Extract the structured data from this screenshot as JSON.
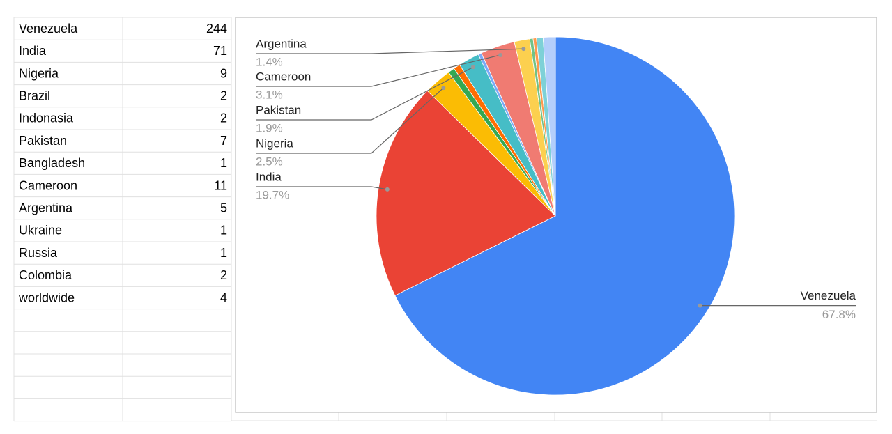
{
  "table": {
    "rows": [
      [
        "Venezuela",
        244
      ],
      [
        "India",
        71
      ],
      [
        "Nigeria",
        9
      ],
      [
        "Brazil",
        2
      ],
      [
        "Indonasia",
        2
      ],
      [
        "Pakistan",
        7
      ],
      [
        "Bangladesh",
        1
      ],
      [
        "Cameroon",
        11
      ],
      [
        "Argentina",
        5
      ],
      [
        "Ukraine",
        1
      ],
      [
        "Russia",
        1
      ],
      [
        "Colombia",
        2
      ],
      [
        "worldwide",
        4
      ]
    ]
  },
  "chart_data": {
    "type": "pie",
    "categories": [
      "Venezuela",
      "India",
      "Nigeria",
      null,
      null,
      "Pakistan",
      null,
      "Cameroon",
      "Argentina",
      null,
      null,
      null,
      null
    ],
    "values": [
      67.8,
      19.7,
      2.5,
      0.6,
      0.6,
      1.9,
      0.3,
      3.1,
      1.4,
      0.3,
      0.3,
      0.6,
      1.1
    ],
    "value_labels": [
      "67.8%",
      "19.7%",
      "2.5%",
      null,
      null,
      "1.9%",
      null,
      "3.1%",
      "1.4%",
      null,
      null,
      null,
      null
    ],
    "colors": [
      "#4285f4",
      "#ea4335",
      "#fbbc04",
      "#34a853",
      "#ff6d01",
      "#46bdc6",
      "#7baaf7",
      "#f07b72",
      "#fcd04f",
      "#71c287",
      "#ff994d",
      "#7ed1d7",
      "#b3cefb"
    ]
  }
}
